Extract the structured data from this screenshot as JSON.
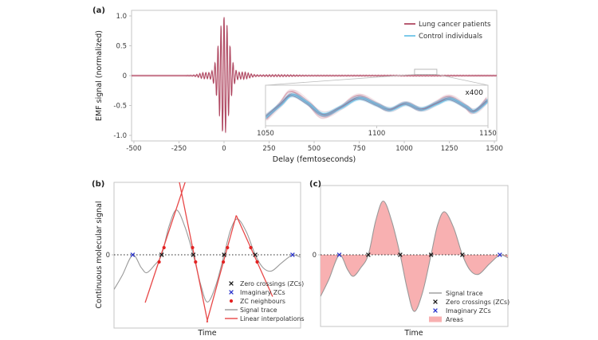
{
  "colors": {
    "cancer": "#b04a63",
    "cancer_fuzz": "#c0607a",
    "control": "#6fc4e8",
    "red_line": "#e84848",
    "red_dot": "#e32222",
    "marker_blue": "#2832cc",
    "marker_black": "#1a1a1a",
    "signal_gray": "#999999",
    "area_pink": "#f8b0b1",
    "spine": "#c6c6c6",
    "connector": "#bbbbbb"
  },
  "chart_data": [
    {
      "id": "a",
      "type": "line",
      "panel_label": "(a)",
      "xlabel": "Delay (femtoseconds)",
      "ylabel": "EMF signal (normalized)",
      "xlim": [
        -513,
        1513
      ],
      "ylim": [
        -1.09,
        1.09
      ],
      "xticks": [
        "-500",
        "-250",
        "0",
        "250",
        "500",
        "750",
        "1000",
        "1250",
        "1500"
      ],
      "yticks": [
        "1.0",
        "0.5",
        "0",
        "-0.5",
        "-1.0"
      ],
      "grid": false,
      "legend_location": "upper right",
      "legend": [
        {
          "label": "Lung cancer patients",
          "series": "lung_cancer_patients"
        },
        {
          "label": "Control individuals",
          "series": "control_individuals"
        }
      ],
      "signal_model": {
        "description": "Gaussian-enveloped carrier pulse, peak normalized to 1 at 0 fs",
        "carrier_period_fs": 16.8,
        "envelope_gaussians": [
          {
            "center_fs": 0,
            "width_fs": 40,
            "amplitude": 1.0
          },
          {
            "center_fs": -108,
            "width_fs": 42,
            "amplitude": 0.05
          },
          {
            "center_fs": 108,
            "width_fs": 46,
            "amplitude": 0.055
          },
          {
            "center_fs": 290,
            "width_fs": 130,
            "amplitude": 0.012
          },
          {
            "center_fs": 900,
            "width_fs": 600,
            "amplitude": 0.003
          }
        ]
      },
      "inset": {
        "magnification": "x400",
        "xlim": [
          1050,
          1150
        ],
        "xticks": [
          "1050",
          "1100",
          "1150"
        ],
        "source_range_fs": [
          1057,
          1181
        ],
        "curve_fs_amp": [
          [
            1050,
            -0.8
          ],
          [
            1057,
            0.1
          ],
          [
            1062,
            0.72
          ],
          [
            1069,
            0.15
          ],
          [
            1076,
            -0.62
          ],
          [
            1084,
            -0.12
          ],
          [
            1092,
            0.5
          ],
          [
            1100,
            0.06
          ],
          [
            1106,
            -0.28
          ],
          [
            1113,
            0.12
          ],
          [
            1120,
            -0.26
          ],
          [
            1127,
            0.14
          ],
          [
            1133,
            0.45
          ],
          [
            1140,
            -0.08
          ],
          [
            1144,
            -0.38
          ],
          [
            1150,
            0.35
          ]
        ]
      }
    },
    {
      "id": "b",
      "type": "line",
      "panel_label": "(b)",
      "xlabel": "Time",
      "ylabel": "Continuous molecular signal",
      "yticks": [
        "0"
      ],
      "grid": false,
      "legend_location": "lower right",
      "signal_trace": [
        [
          0,
          -0.58
        ],
        [
          0.045,
          -0.34
        ],
        [
          0.1,
          -0.005
        ],
        [
          0.145,
          -0.21
        ],
        [
          0.175,
          -0.3
        ],
        [
          0.215,
          -0.18
        ],
        [
          0.255,
          0
        ],
        [
          0.295,
          0.48
        ],
        [
          0.335,
          0.75
        ],
        [
          0.38,
          0.47
        ],
        [
          0.425,
          0
        ],
        [
          0.463,
          -0.48
        ],
        [
          0.5,
          -0.79
        ],
        [
          0.545,
          -0.52
        ],
        [
          0.59,
          0
        ],
        [
          0.625,
          0.42
        ],
        [
          0.662,
          0.6
        ],
        [
          0.71,
          0.38
        ],
        [
          0.757,
          0
        ],
        [
          0.8,
          -0.22
        ],
        [
          0.845,
          -0.27
        ],
        [
          0.9,
          -0.13
        ],
        [
          0.957,
          -0.005
        ],
        [
          1.0,
          -0.04
        ]
      ],
      "zero_crossings": [
        0.255,
        0.425,
        0.59,
        0.757
      ],
      "imaginary_zero_crossings": [
        0.1,
        0.957
      ],
      "zc_neighbours": [
        [
          0.242,
          -0.12
        ],
        [
          0.268,
          0.12
        ],
        [
          0.421,
          0.12
        ],
        [
          0.437,
          -0.12
        ],
        [
          0.586,
          -0.12
        ],
        [
          0.608,
          0.12
        ],
        [
          0.733,
          0.12
        ],
        [
          0.767,
          -0.12
        ]
      ],
      "linear_interpolations": [
        [
          [
            0.167,
            -0.8
          ],
          [
            0.39,
            1.3
          ]
        ],
        [
          [
            0.345,
            1.3
          ],
          [
            0.502,
            -1.13
          ]
        ],
        [
          [
            0.497,
            -1.13
          ],
          [
            0.655,
            0.66
          ]
        ],
        [
          [
            0.655,
            0.66
          ],
          [
            0.85,
            -0.7
          ]
        ]
      ],
      "legend": [
        {
          "label": "Zero crossings (ZCs)",
          "marker": "x-black"
        },
        {
          "label": "Imaginary ZCs",
          "marker": "x-blue"
        },
        {
          "label": "ZC neighbours",
          "marker": "dot-red"
        },
        {
          "label": "Signal trace",
          "marker": "line-gray"
        },
        {
          "label": "Linear interpolations",
          "marker": "line-red"
        }
      ]
    },
    {
      "id": "c",
      "type": "area",
      "panel_label": "(c)",
      "xlabel": "Time",
      "ylabel": "",
      "yticks": [
        "0"
      ],
      "grid": false,
      "legend_location": "lower right",
      "signal_trace": [
        [
          0,
          -0.58
        ],
        [
          0.045,
          -0.34
        ],
        [
          0.1,
          -0.005
        ],
        [
          0.145,
          -0.21
        ],
        [
          0.175,
          -0.3
        ],
        [
          0.215,
          -0.18
        ],
        [
          0.255,
          0
        ],
        [
          0.295,
          0.48
        ],
        [
          0.335,
          0.75
        ],
        [
          0.38,
          0.47
        ],
        [
          0.425,
          0
        ],
        [
          0.463,
          -0.48
        ],
        [
          0.5,
          -0.79
        ],
        [
          0.545,
          -0.52
        ],
        [
          0.59,
          0
        ],
        [
          0.625,
          0.42
        ],
        [
          0.662,
          0.6
        ],
        [
          0.71,
          0.38
        ],
        [
          0.757,
          0
        ],
        [
          0.8,
          -0.22
        ],
        [
          0.845,
          -0.27
        ],
        [
          0.9,
          -0.13
        ],
        [
          0.957,
          -0.005
        ],
        [
          1.0,
          -0.04
        ]
      ],
      "zero_crossings": [
        0.255,
        0.425,
        0.59,
        0.757
      ],
      "imaginary_zero_crossings": [
        0.1,
        0.957
      ],
      "areas_filled_between_curve_and_zero": true,
      "legend": [
        {
          "label": "Signal trace",
          "marker": "line-gray"
        },
        {
          "label": "Zero crossings (ZCs)",
          "marker": "x-black"
        },
        {
          "label": "Imaginary ZCs",
          "marker": "x-blue"
        },
        {
          "label": "Areas",
          "marker": "area-pink"
        }
      ]
    }
  ]
}
